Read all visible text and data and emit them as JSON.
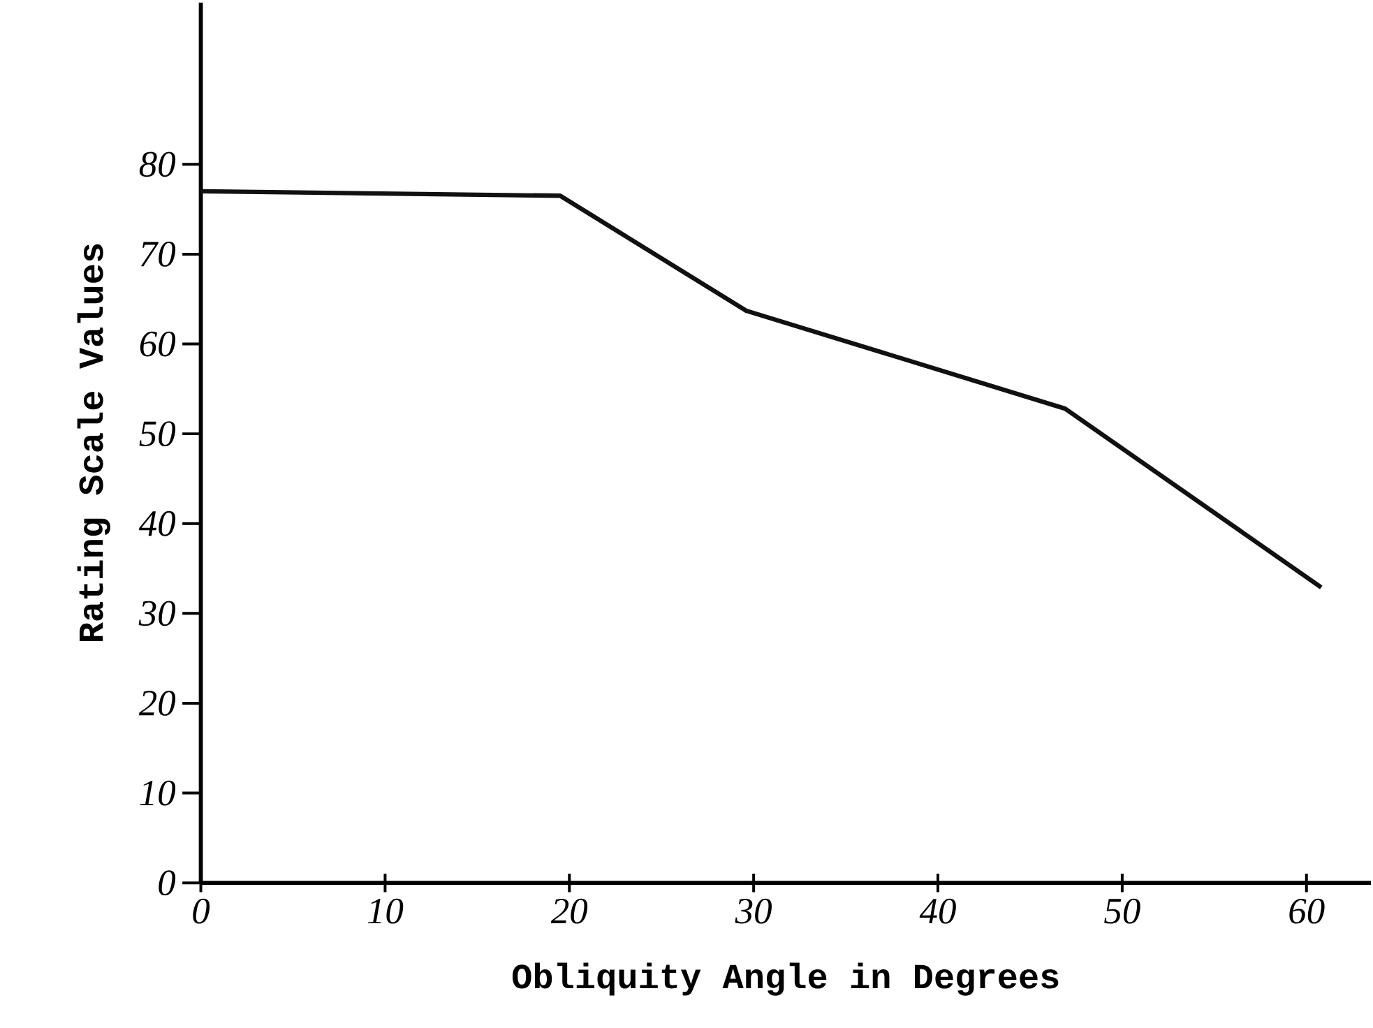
{
  "chart_data": {
    "type": "line",
    "xlabel": "Obliquity Angle in Degrees",
    "ylabel": "Rating Scale Values",
    "x": [
      0,
      19.5,
      29.6,
      46.9,
      60.8
    ],
    "values": [
      77,
      76.5,
      63.7,
      52.8,
      32.9
    ],
    "color": "#111111",
    "marker": "none",
    "line_style": "solid",
    "grid": false,
    "xlim": [
      0,
      63.5
    ],
    "ylim": [
      0,
      98
    ],
    "xticks": [
      0,
      10,
      20,
      30,
      40,
      50,
      60
    ],
    "yticks": [
      0,
      10,
      20,
      30,
      40,
      50,
      60,
      70,
      80
    ]
  }
}
